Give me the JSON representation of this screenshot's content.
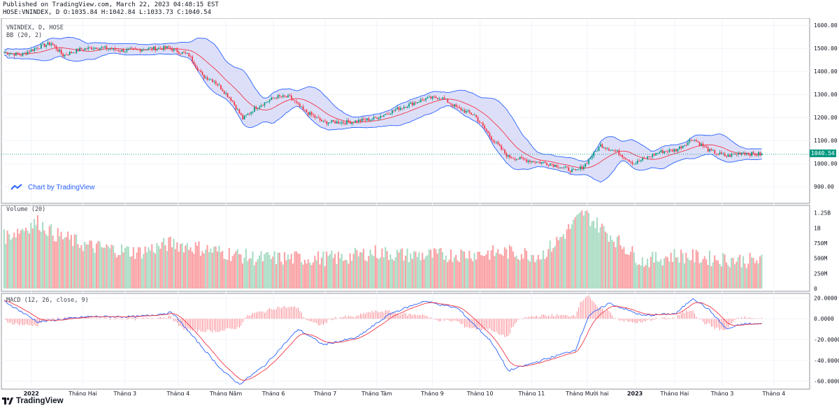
{
  "header": {
    "line1": "Published on TradingView.com, March 22, 2023 04:48:15 EST",
    "line2": "HOSE:VNINDEX, D O:1035.84 H:1042.84 L:1033.73 C:1040.54"
  },
  "panes": {
    "price_title": "VNINDEX, D, HOSE",
    "bb_title": "BB (20, 2)",
    "volume_title": "Volume (20)",
    "macd_title": "MACD (12, 26, close, 9)",
    "chart_by": "Chart by TradingView",
    "last_price": "1040.54"
  },
  "footer": {
    "brand": "TradingView"
  },
  "colors": {
    "up": "#089981",
    "down": "#f23645",
    "vol_up": "#a9dcc3",
    "vol_down": "#faa1a4",
    "bb_line": "#2962ff",
    "bb_basis": "#f23645",
    "bb_fill": "#d1d4f5",
    "macd_line": "#2962ff",
    "signal_line": "#f23645"
  },
  "chart_data": {
    "type": "candlestick",
    "price_axis": {
      "ticks": [
        900,
        1000,
        1100,
        1200,
        1300,
        1400,
        1500,
        1600
      ],
      "tick_labels": [
        "900.00",
        "1000.00",
        "1100.00",
        "1200.00",
        "1300.00",
        "1400.00",
        "1500.00",
        "1600.00"
      ],
      "range": [
        840,
        1625
      ]
    },
    "volume_axis": {
      "ticks": [
        0,
        250,
        500,
        750,
        1000,
        1250
      ],
      "tick_labels": [
        "0",
        "250M",
        "500M",
        "750M",
        "1B",
        "1.25B"
      ],
      "range": [
        0,
        1350
      ]
    },
    "macd_axis": {
      "ticks": [
        -60,
        -40,
        -20,
        0,
        20
      ],
      "tick_labels": [
        "-60.0000",
        "-40.0000",
        "-20.0000",
        "0.0000",
        "20.0000"
      ],
      "range": [
        -65,
        23
      ]
    },
    "time_axis": [
      "2022",
      "Tháng Hai",
      "Tháng 3",
      "Tháng 4",
      "Tháng Năm",
      "Tháng 6",
      "Tháng 7",
      "Tháng Tám",
      "Tháng 9",
      "Tháng 10",
      "Tháng 11",
      "Tháng Mười hai",
      "2023",
      "Tháng Hai",
      "Tháng 3",
      "Tháng 4"
    ],
    "close_keypoints": [
      [
        0,
        1482
      ],
      [
        10,
        1472
      ],
      [
        20,
        1505
      ],
      [
        28,
        1522
      ],
      [
        35,
        1470
      ],
      [
        45,
        1495
      ],
      [
        55,
        1505
      ],
      [
        70,
        1490
      ],
      [
        85,
        1498
      ],
      [
        98,
        1502
      ],
      [
        110,
        1470
      ],
      [
        118,
        1380
      ],
      [
        125,
        1360
      ],
      [
        135,
        1280
      ],
      [
        142,
        1195
      ],
      [
        150,
        1245
      ],
      [
        162,
        1290
      ],
      [
        170,
        1288
      ],
      [
        178,
        1232
      ],
      [
        190,
        1180
      ],
      [
        205,
        1180
      ],
      [
        220,
        1195
      ],
      [
        235,
        1240
      ],
      [
        250,
        1280
      ],
      [
        260,
        1288
      ],
      [
        270,
        1240
      ],
      [
        280,
        1210
      ],
      [
        290,
        1110
      ],
      [
        300,
        1030
      ],
      [
        315,
        1010
      ],
      [
        325,
        1000
      ],
      [
        340,
        965
      ],
      [
        345,
        990
      ],
      [
        355,
        1080
      ],
      [
        365,
        1050
      ],
      [
        375,
        1000
      ],
      [
        390,
        1050
      ],
      [
        400,
        1060
      ],
      [
        410,
        1108
      ],
      [
        420,
        1055
      ],
      [
        430,
        1032
      ],
      [
        440,
        1050
      ],
      [
        445,
        1042
      ],
      [
        452,
        1040
      ]
    ],
    "volume_keypoints": [
      [
        0,
        850
      ],
      [
        20,
        1100
      ],
      [
        30,
        900
      ],
      [
        50,
        700
      ],
      [
        80,
        600
      ],
      [
        100,
        750
      ],
      [
        120,
        650
      ],
      [
        150,
        500
      ],
      [
        200,
        500
      ],
      [
        220,
        600
      ],
      [
        240,
        550
      ],
      [
        260,
        550
      ],
      [
        300,
        600
      ],
      [
        320,
        550
      ],
      [
        330,
        800
      ],
      [
        345,
        1250
      ],
      [
        360,
        900
      ],
      [
        380,
        450
      ],
      [
        400,
        550
      ],
      [
        420,
        500
      ],
      [
        452,
        450
      ]
    ],
    "macd_keypoints": [
      [
        0,
        17
      ],
      [
        20,
        -3
      ],
      [
        50,
        2
      ],
      [
        80,
        2
      ],
      [
        100,
        6
      ],
      [
        130,
        -50
      ],
      [
        140,
        -63
      ],
      [
        155,
        -45
      ],
      [
        175,
        -10
      ],
      [
        190,
        -25
      ],
      [
        210,
        -18
      ],
      [
        230,
        5
      ],
      [
        250,
        17
      ],
      [
        270,
        10
      ],
      [
        290,
        -22
      ],
      [
        300,
        -50
      ],
      [
        320,
        -40
      ],
      [
        340,
        -30
      ],
      [
        348,
        3
      ],
      [
        360,
        15
      ],
      [
        380,
        3
      ],
      [
        400,
        5
      ],
      [
        410,
        20
      ],
      [
        420,
        8
      ],
      [
        430,
        -10
      ],
      [
        440,
        -5
      ],
      [
        452,
        -5
      ]
    ],
    "bars": 452
  }
}
